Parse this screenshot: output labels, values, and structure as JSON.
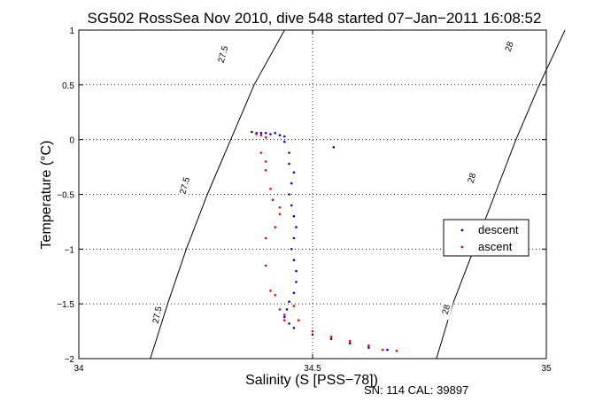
{
  "chart_data": {
    "type": "scatter",
    "title": "SG502 RossSea Nov 2010, dive 548 started 07−Jan−2011 16:08:52",
    "xlabel": "Salinity (S [PSS−78])",
    "ylabel": "Temperature (°C)",
    "xlim": [
      34,
      35
    ],
    "ylim": [
      -2,
      1
    ],
    "xticks": [
      34,
      34.5,
      35
    ],
    "xtick_labels": [
      "34",
      "34.5",
      "35"
    ],
    "yticks": [
      -2,
      -1.5,
      -1,
      -0.5,
      0,
      0.5,
      1
    ],
    "ytick_labels": [
      "−2",
      "−1.5",
      "−1",
      "−0.5",
      "0",
      "0.5",
      "1"
    ],
    "grid": true,
    "legend_position": "right",
    "footer": "SN: 114  CAL: 39897",
    "colors": {
      "descent": "#0000ff",
      "ascent": "#ff0000",
      "contour": "#000000"
    },
    "contours": [
      {
        "label": "27.5",
        "points": [
          [
            34.153,
            -2.0
          ],
          [
            34.19,
            -1.5
          ],
          [
            34.23,
            -1.0
          ],
          [
            34.275,
            -0.5
          ],
          [
            34.325,
            0.0
          ],
          [
            34.375,
            0.5
          ],
          [
            34.44,
            1.0
          ]
        ]
      },
      {
        "label": "28",
        "points": [
          [
            34.765,
            -2.0
          ],
          [
            34.8,
            -1.5
          ],
          [
            34.845,
            -1.0
          ],
          [
            34.89,
            -0.5
          ],
          [
            34.935,
            0.0
          ],
          [
            34.985,
            0.5
          ],
          [
            35.04,
            1.0
          ]
        ]
      }
    ],
    "contour_labels": [
      {
        "text": "27.5",
        "s": 34.308,
        "t": 0.78,
        "angle": -75
      },
      {
        "text": "27.5",
        "s": 34.226,
        "t": -0.42,
        "angle": -75
      },
      {
        "text": "27.5",
        "s": 34.167,
        "t": -1.6,
        "angle": -78
      },
      {
        "text": "28",
        "s": 34.92,
        "t": 0.85,
        "angle": -72
      },
      {
        "text": "28",
        "s": 34.84,
        "t": -0.35,
        "angle": -74
      },
      {
        "text": "28",
        "s": 34.785,
        "t": -1.55,
        "angle": -76
      }
    ],
    "series": [
      {
        "name": "descent",
        "points": [
          [
            34.37,
            0.07
          ],
          [
            34.38,
            0.06
          ],
          [
            34.39,
            0.06
          ],
          [
            34.4,
            0.06
          ],
          [
            34.41,
            0.05
          ],
          [
            34.42,
            0.06
          ],
          [
            34.43,
            0.04
          ],
          [
            34.44,
            0.03
          ],
          [
            34.44,
            -0.02
          ],
          [
            34.45,
            -0.12
          ],
          [
            34.45,
            -0.22
          ],
          [
            34.46,
            -0.3
          ],
          [
            34.455,
            -0.4
          ],
          [
            34.45,
            -0.5
          ],
          [
            34.455,
            -0.6
          ],
          [
            34.46,
            -0.7
          ],
          [
            34.465,
            -0.8
          ],
          [
            34.46,
            -0.9
          ],
          [
            34.455,
            -1.0
          ],
          [
            34.46,
            -1.1
          ],
          [
            34.465,
            -1.2
          ],
          [
            34.465,
            -1.3
          ],
          [
            34.46,
            -1.4
          ],
          [
            34.45,
            -1.48
          ],
          [
            34.445,
            -1.55
          ],
          [
            34.44,
            -1.62
          ],
          [
            34.45,
            -1.68
          ],
          [
            34.46,
            -1.72
          ],
          [
            34.5,
            -1.78
          ],
          [
            34.54,
            -1.82
          ],
          [
            34.58,
            -1.86
          ],
          [
            34.62,
            -1.9
          ],
          [
            34.66,
            -1.92
          ],
          [
            34.545,
            -0.07
          ]
        ]
      },
      {
        "name": "ascent",
        "points": [
          [
            34.38,
            0.05
          ],
          [
            34.39,
            0.04
          ],
          [
            34.4,
            0.02
          ],
          [
            34.39,
            -0.12
          ],
          [
            34.4,
            -0.2
          ],
          [
            34.4,
            -0.28
          ],
          [
            34.41,
            -0.45
          ],
          [
            34.415,
            -0.55
          ],
          [
            34.43,
            -0.62
          ],
          [
            34.43,
            -0.68
          ],
          [
            34.42,
            -0.8
          ],
          [
            34.4,
            -0.9
          ],
          [
            34.4,
            -1.15
          ],
          [
            34.41,
            -1.38
          ],
          [
            34.42,
            -1.42
          ],
          [
            34.43,
            -1.55
          ],
          [
            34.44,
            -1.6
          ],
          [
            34.44,
            -1.65
          ],
          [
            34.46,
            -1.52
          ],
          [
            34.47,
            -1.65
          ],
          [
            34.5,
            -1.75
          ],
          [
            34.54,
            -1.8
          ],
          [
            34.58,
            -1.84
          ],
          [
            34.62,
            -1.88
          ],
          [
            34.65,
            -1.92
          ],
          [
            34.68,
            -1.93
          ]
        ]
      }
    ]
  }
}
